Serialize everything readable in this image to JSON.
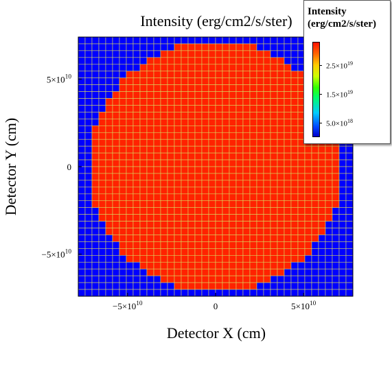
{
  "chart_data": {
    "type": "heatmap",
    "title": "Intensity (erg/cm2/s/ster)",
    "xlabel": "Detector X (cm)",
    "ylabel": "Detector Y (cm)",
    "x_ticks": [
      {
        "value": -50000000000.0,
        "label": "−5×10",
        "exp": "10"
      },
      {
        "value": 0,
        "label": "0",
        "exp": ""
      },
      {
        "value": 50000000000.0,
        "label": "5×10",
        "exp": "10"
      }
    ],
    "y_ticks": [
      {
        "value": 50000000000.0,
        "label": "5×10",
        "exp": "10"
      },
      {
        "value": 0,
        "label": "0",
        "exp": ""
      },
      {
        "value": -50000000000.0,
        "label": "−5×10",
        "exp": "10"
      }
    ],
    "xlim": [
      -78000000000.0,
      78000000000.0
    ],
    "ylim": [
      -74000000000.0,
      74000000000.0
    ],
    "grid_cols": 40,
    "grid_rows": 38,
    "disk": {
      "center_x": 0,
      "center_y": 0,
      "radius": 72000000000.0,
      "inside_value": 3.2e+19,
      "outside_value": 1e+17
    },
    "grid_line_color": "#d8d860",
    "inside_color": "#ff2200",
    "outside_color": "#0000ff",
    "colorbar": {
      "title_line1": "Intensity",
      "title_line2": "(erg/cm2/s/ster)",
      "range": [
        0,
        3.3e+19
      ],
      "placement": "top-right",
      "ticks": [
        {
          "value": 2.5e+19,
          "label": "2.5×10",
          "exp": "19"
        },
        {
          "value": 1.5e+19,
          "label": "1.5×10",
          "exp": "19"
        },
        {
          "value": 5e+18,
          "label": "5.0×10",
          "exp": "18"
        }
      ]
    }
  }
}
